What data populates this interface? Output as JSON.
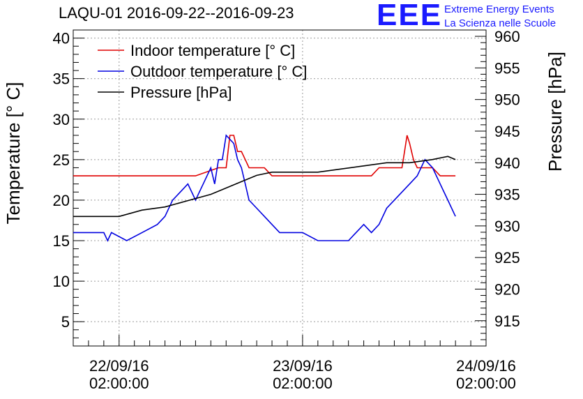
{
  "title": "LAQU-01 2016-09-22--2016-09-23",
  "logo": {
    "mark": "EEE",
    "line1": "Extreme Energy Events",
    "line2": "La Scienza nelle Scuole",
    "color": "#1a1aff"
  },
  "chart_data": {
    "type": "line",
    "title": "LAQU-01 2016-09-22--2016-09-23",
    "xlabel": "",
    "ylabel": "Temperature [° C]",
    "y2label": "Pressure [hPa]",
    "ylim": [
      2,
      41
    ],
    "y2lim": [
      911,
      961
    ],
    "xlim": [
      "2016-09-21 20:00",
      "2016-09-24 02:00"
    ],
    "yticks": [
      5,
      10,
      15,
      20,
      25,
      30,
      35,
      40
    ],
    "y2ticks": [
      915,
      920,
      925,
      930,
      935,
      940,
      945,
      950,
      955,
      960
    ],
    "xticks": [
      {
        "t": "2016-09-22 02:00",
        "label_date": "22/09/16",
        "label_time": "02:00:00"
      },
      {
        "t": "2016-09-23 02:00",
        "label_date": "23/09/16",
        "label_time": "02:00:00"
      },
      {
        "t": "2016-09-24 02:00",
        "label_date": "24/09/16",
        "label_time": "02:00:00"
      }
    ],
    "grid": true,
    "legend_position": "top-left",
    "series": [
      {
        "name": "Indoor temperature [° C]",
        "axis": "left",
        "color": "#e00000",
        "x": [
          "2016-09-21 20:00",
          "2016-09-22 06:00",
          "2016-09-22 12:00",
          "2016-09-22 15:00",
          "2016-09-22 16:00",
          "2016-09-22 16:30",
          "2016-09-22 17:00",
          "2016-09-22 17:30",
          "2016-09-22 18:00",
          "2016-09-22 18:30",
          "2016-09-22 19:00",
          "2016-09-22 20:00",
          "2016-09-22 21:00",
          "2016-09-22 22:00",
          "2016-09-23 02:00",
          "2016-09-23 08:00",
          "2016-09-23 11:00",
          "2016-09-23 12:00",
          "2016-09-23 13:00",
          "2016-09-23 14:00",
          "2016-09-23 15:00",
          "2016-09-23 15:20",
          "2016-09-23 15:40",
          "2016-09-23 16:00",
          "2016-09-23 16:30",
          "2016-09-23 17:00",
          "2016-09-23 18:00",
          "2016-09-23 19:00",
          "2016-09-23 20:00",
          "2016-09-23 22:00"
        ],
        "y": [
          23,
          23,
          23,
          24,
          24,
          28,
          28,
          26,
          26,
          25,
          24,
          24,
          24,
          23,
          23,
          23,
          23,
          24,
          24,
          24,
          24,
          26,
          28,
          27,
          25,
          24,
          24,
          24,
          23,
          23
        ]
      },
      {
        "name": "Outdoor temperature [° C]",
        "axis": "left",
        "color": "#0000e0",
        "x": [
          "2016-09-21 20:00",
          "2016-09-22 00:00",
          "2016-09-22 00:30",
          "2016-09-22 01:00",
          "2016-09-22 03:00",
          "2016-09-22 05:00",
          "2016-09-22 07:00",
          "2016-09-22 08:00",
          "2016-09-22 09:00",
          "2016-09-22 10:00",
          "2016-09-22 11:00",
          "2016-09-22 12:00",
          "2016-09-22 13:00",
          "2016-09-22 14:00",
          "2016-09-22 14:30",
          "2016-09-22 15:00",
          "2016-09-22 15:30",
          "2016-09-22 16:00",
          "2016-09-22 17:00",
          "2016-09-22 17:30",
          "2016-09-22 18:00",
          "2016-09-22 18:30",
          "2016-09-22 19:00",
          "2016-09-22 20:00",
          "2016-09-22 21:00",
          "2016-09-22 22:00",
          "2016-09-22 23:00",
          "2016-09-23 00:00",
          "2016-09-23 02:00",
          "2016-09-23 04:00",
          "2016-09-23 06:00",
          "2016-09-23 08:00",
          "2016-09-23 09:00",
          "2016-09-23 10:00",
          "2016-09-23 11:00",
          "2016-09-23 12:00",
          "2016-09-23 13:00",
          "2016-09-23 14:00",
          "2016-09-23 15:00",
          "2016-09-23 16:00",
          "2016-09-23 17:00",
          "2016-09-23 18:00",
          "2016-09-23 19:00",
          "2016-09-23 20:00",
          "2016-09-23 21:00",
          "2016-09-23 22:00"
        ],
        "y": [
          16,
          16,
          15,
          16,
          15,
          16,
          17,
          18,
          20,
          21,
          22,
          20,
          22,
          24,
          22,
          25,
          25,
          28,
          27,
          25,
          24,
          22,
          20,
          19,
          18,
          17,
          16,
          16,
          16,
          15,
          15,
          15,
          16,
          17,
          16,
          17,
          19,
          20,
          21,
          22,
          23,
          25,
          24,
          22,
          20,
          18
        ]
      },
      {
        "name": "Pressure [hPa]",
        "axis": "right",
        "color": "#000000",
        "x": [
          "2016-09-21 20:00",
          "2016-09-22 02:00",
          "2016-09-22 05:00",
          "2016-09-22 08:00",
          "2016-09-22 11:00",
          "2016-09-22 14:00",
          "2016-09-22 16:00",
          "2016-09-22 18:00",
          "2016-09-22 20:00",
          "2016-09-22 22:00",
          "2016-09-23 01:00",
          "2016-09-23 04:00",
          "2016-09-23 07:00",
          "2016-09-23 10:00",
          "2016-09-23 13:00",
          "2016-09-23 16:00",
          "2016-09-23 19:00",
          "2016-09-23 21:00",
          "2016-09-23 22:00"
        ],
        "y": [
          931.5,
          931.5,
          932.5,
          933,
          934,
          935,
          936,
          937,
          938,
          938.5,
          938.5,
          938.5,
          939,
          939.5,
          940,
          940,
          940.5,
          941,
          940.5
        ]
      }
    ]
  }
}
